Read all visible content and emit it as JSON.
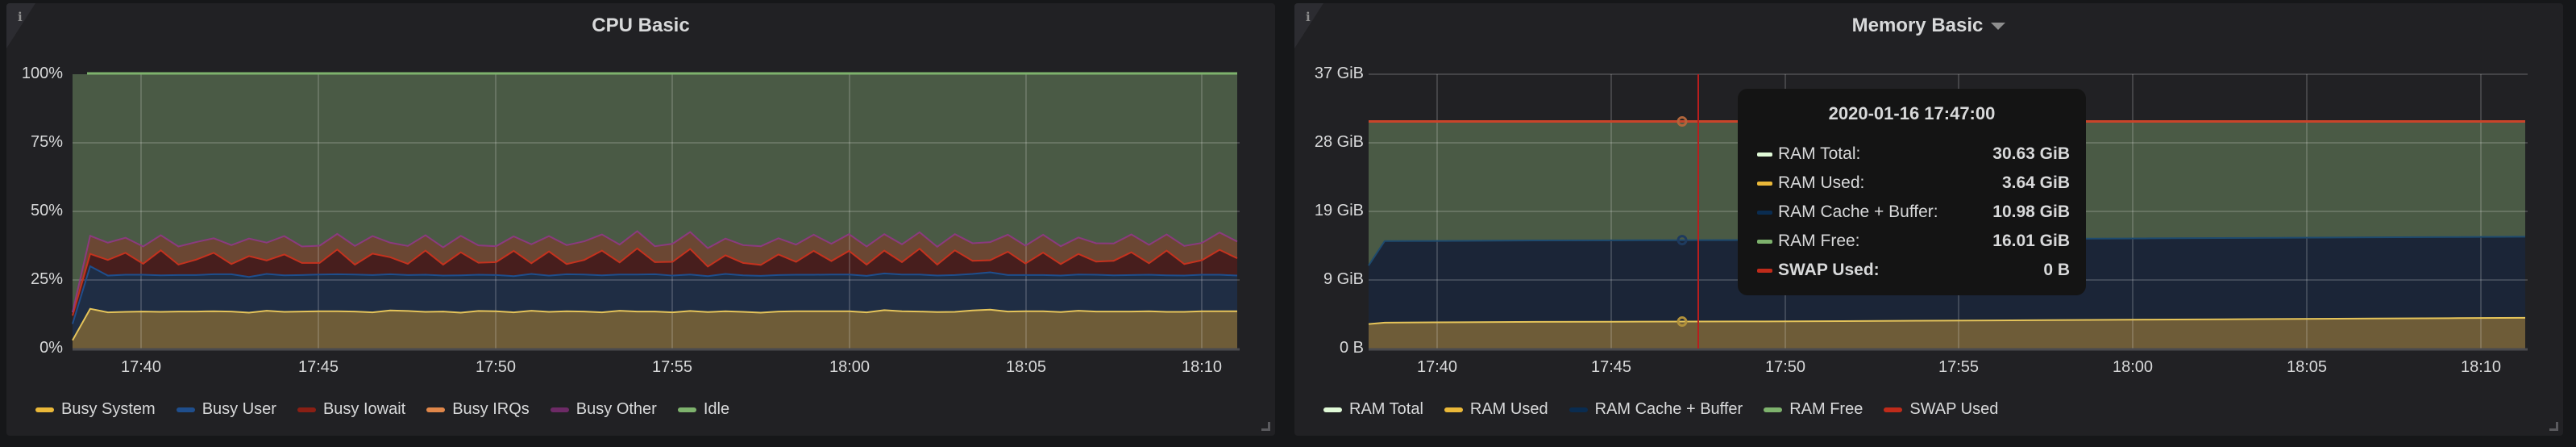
{
  "panels": {
    "cpu": {
      "title": "CPU Basic",
      "info_icon": "i",
      "y_ticks": [
        "100%",
        "75%",
        "50%",
        "25%",
        "0%"
      ],
      "x_ticks": [
        "17:40",
        "17:45",
        "17:50",
        "17:55",
        "18:00",
        "18:05",
        "18:10"
      ],
      "legend": [
        {
          "label": "Busy System",
          "color": "#EAB839"
        },
        {
          "label": "Busy User",
          "color": "#1F78C1"
        },
        {
          "label": "Busy Iowait",
          "color": "#BA43A9"
        },
        {
          "label": "Busy IRQs",
          "color": "#F9934E"
        },
        {
          "label": "Busy Other",
          "color": "#6D1F62"
        },
        {
          "label": "Idle",
          "color": "#7EB26D"
        }
      ]
    },
    "memory": {
      "title": "Memory Basic",
      "info_icon": "i",
      "y_ticks": [
        "37 GiB",
        "28 GiB",
        "19 GiB",
        "9 GiB",
        "0 B"
      ],
      "x_ticks": [
        "17:40",
        "17:45",
        "17:50",
        "17:55",
        "18:00",
        "18:05",
        "18:10"
      ],
      "legend": [
        {
          "label": "RAM Total",
          "color": "#E0F9D7"
        },
        {
          "label": "RAM Used",
          "color": "#EAB839"
        },
        {
          "label": "RAM Cache + Buffer",
          "color": "#052B51"
        },
        {
          "label": "RAM Free",
          "color": "#7EB26D"
        },
        {
          "label": "SWAP Used",
          "color": "#BF1B00"
        }
      ],
      "tooltip": {
        "time": "2020-01-16 17:47:00",
        "rows": [
          {
            "label": "RAM Total:",
            "value": "30.63 GiB",
            "color": "#E0F9D7"
          },
          {
            "label": "RAM Used:",
            "value": "3.64 GiB",
            "color": "#EAB839"
          },
          {
            "label": "RAM Cache + Buffer:",
            "value": "10.98 GiB",
            "color": "#052B51"
          },
          {
            "label": "RAM Free:",
            "value": "16.01 GiB",
            "color": "#7EB26D"
          },
          {
            "label": "SWAP Used:",
            "value": "0 B",
            "color": "#BF1B00"
          }
        ]
      }
    }
  },
  "chart_data": [
    {
      "type": "area",
      "title": "CPU Basic",
      "stacked": true,
      "xlabel": "",
      "ylabel": "",
      "ylim": [
        0,
        100
      ],
      "y_unit": "%",
      "x_ticks": [
        "17:40",
        "17:45",
        "17:50",
        "17:55",
        "18:00",
        "18:05",
        "18:10"
      ],
      "x_start": "17:38:00",
      "x_step_seconds": 30,
      "grid": true,
      "legend_position": "bottom",
      "series": [
        {
          "name": "Busy System",
          "color": "#EAB839",
          "values": [
            3,
            14.5,
            13.2,
            13.4,
            13.5,
            13.4,
            13.5,
            13.5,
            13.6,
            13.5,
            13.1,
            13.8,
            13.4,
            13.5,
            13.6,
            13.6,
            13.5,
            13.2,
            13.9,
            13.7,
            13.4,
            13.5,
            13.1,
            13.7,
            13.6,
            13.2,
            13.8,
            13.4,
            13.6,
            13.5,
            13.2,
            13.8,
            13.5,
            13.5,
            13.2,
            13.7,
            13.3,
            13.6,
            13.4,
            13.1,
            13.5,
            13.6,
            13.6,
            13.6,
            13.6,
            13.2,
            14.0,
            13.6,
            13.5,
            13.3,
            13.4,
            13.9,
            14.2,
            13.5,
            13.6,
            13.6,
            13.3,
            13.8,
            13.5,
            13.5,
            13.5,
            13.6,
            13.4,
            13.4,
            13.6,
            13.6,
            13.6
          ]
        },
        {
          "name": "Busy User",
          "color": "#1F78C1",
          "values": [
            6,
            15.5,
            13.4,
            13.5,
            13.4,
            13.3,
            13.3,
            13.3,
            13.5,
            13.6,
            13.0,
            13.4,
            13.3,
            13.3,
            13.4,
            13.5,
            13.5,
            13.6,
            13.2,
            13.1,
            13.5,
            13.1,
            13.6,
            13.2,
            13.2,
            13.2,
            13.4,
            13.2,
            13.5,
            13.5,
            13.5,
            13.2,
            13.5,
            13.6,
            13.4,
            13.3,
            13.1,
            13.6,
            13.3,
            13.4,
            13.3,
            13.3,
            13.3,
            13.4,
            13.4,
            13.3,
            13.4,
            13.4,
            13.5,
            13.3,
            13.4,
            13.3,
            13.6,
            13.3,
            13.2,
            13.2,
            13.3,
            13.2,
            13.4,
            13.2,
            13.3,
            13.3,
            13.3,
            13.2,
            13.3,
            13.3,
            13.0
          ]
        },
        {
          "name": "Busy Iowait",
          "color": "#BA43A9",
          "values": [
            3,
            4.5,
            5.7,
            8.0,
            4.0,
            9.1,
            3.8,
            5.6,
            7.8,
            3.7,
            7.6,
            4.9,
            7.6,
            4.4,
            4.2,
            9.0,
            3.6,
            7.8,
            6.2,
            4.1,
            8.8,
            4.0,
            8.4,
            4.4,
            4.7,
            9.2,
            3.9,
            8.8,
            3.7,
            5.3,
            9.0,
            4.4,
            9.5,
            4.4,
            5.0,
            9.3,
            3.5,
            6.8,
            4.5,
            4.0,
            7.5,
            4.7,
            8.7,
            4.9,
            8.6,
            4.1,
            8.3,
            4.5,
            9.4,
            4.0,
            9.0,
            4.8,
            4.4,
            8.5,
            4.2,
            8.2,
            4.2,
            7.5,
            4.8,
            5.3,
            8.3,
            4.2,
            9.0,
            4.2,
            5.3,
            9.1,
            6.3
          ]
        },
        {
          "name": "Busy IRQs",
          "color": "#F9934E",
          "values": [
            1,
            6.3,
            6.0,
            5.2,
            6.0,
            5.2,
            6.3,
            6.1,
            5.0,
            6.6,
            6.1,
            6.2,
            6.4,
            5.7,
            6.0,
            5.4,
            6.5,
            6.1,
            5.0,
            6.2,
            5.3,
            6.0,
            5.7,
            6.0,
            5.5,
            5.0,
            6.6,
            5.3,
            6.6,
            6.5,
            5.6,
            6.2,
            6.0,
            5.5,
            6.3,
            5.9,
            6.4,
            5.8,
            6.2,
            6.5,
            5.6,
            6.0,
            5.6,
            6.0,
            5.8,
            6.3,
            5.7,
            6.2,
            5.7,
            6.2,
            5.6,
            6.1,
            6.3,
            5.9,
            6.2,
            6.2,
            6.2,
            5.7,
            6.4,
            6.0,
            6.2,
            6.4,
            5.6,
            6.3,
            6.0,
            6.0,
            5.8
          ]
        },
        {
          "name": "Busy Other",
          "color": "#6D1F62",
          "values": [
            0.2,
            0.3,
            0.3,
            0.3,
            0.3,
            0.3,
            0.3,
            0.3,
            0.3,
            0.3,
            0.3,
            0.3,
            0.3,
            0.3,
            0.3,
            0.3,
            0.3,
            0.3,
            0.3,
            0.3,
            0.3,
            0.3,
            0.3,
            0.3,
            0.3,
            0.3,
            0.3,
            0.3,
            0.3,
            0.3,
            0.3,
            0.3,
            0.3,
            0.3,
            0.3,
            0.3,
            0.3,
            0.3,
            0.3,
            0.3,
            0.3,
            0.3,
            0.3,
            0.3,
            0.3,
            0.3,
            0.3,
            0.3,
            0.3,
            0.3,
            0.3,
            0.3,
            0.3,
            0.3,
            0.3,
            0.3,
            0.3,
            0.3,
            0.3,
            0.3,
            0.3,
            0.3,
            0.3,
            0.3,
            0.3,
            0.3,
            0.3
          ]
        },
        {
          "name": "Idle",
          "color": "#7EB26D",
          "note": "fills remainder to 100%"
        }
      ]
    },
    {
      "type": "area",
      "title": "Memory Basic",
      "stacked": true,
      "ylim": [
        0,
        37
      ],
      "y_unit": "GiB",
      "x_ticks": [
        "17:40",
        "17:45",
        "17:50",
        "17:55",
        "18:00",
        "18:05",
        "18:10"
      ],
      "x_start": "17:38:00",
      "x_step_seconds": 30,
      "grid": true,
      "legend_position": "bottom",
      "series": [
        {
          "name": "RAM Total",
          "color": "#E0F9D7",
          "values_summary": "constant 30.63 GiB"
        },
        {
          "name": "RAM Used",
          "color": "#EAB839",
          "values": [
            3.3,
            3.5,
            3.55,
            3.6,
            3.62,
            3.64,
            3.66,
            3.7,
            3.75,
            3.8,
            3.85,
            3.9,
            3.95,
            4.0,
            4.05,
            4.1,
            4.15
          ]
        },
        {
          "name": "RAM Cache + Buffer",
          "color": "#052B51",
          "values": [
            7.9,
            11.0,
            10.98,
            10.98,
            10.98,
            10.98,
            10.98,
            10.98,
            10.98,
            10.97,
            10.97,
            10.96,
            10.96,
            10.95,
            10.95,
            10.94,
            10.94
          ]
        },
        {
          "name": "RAM Free",
          "color": "#7EB26D",
          "values_summary": "remainder to RAM Total (~16 GiB)"
        },
        {
          "name": "SWAP Used",
          "color": "#BF1B00",
          "values_summary": "constant 0 B"
        }
      ],
      "hover": {
        "time": "2020-01-16 17:47:00",
        "RAM Total": 30.63,
        "RAM Used": 3.64,
        "RAM Cache + Buffer": 10.98,
        "RAM Free": 16.01,
        "SWAP Used": 0
      }
    }
  ]
}
